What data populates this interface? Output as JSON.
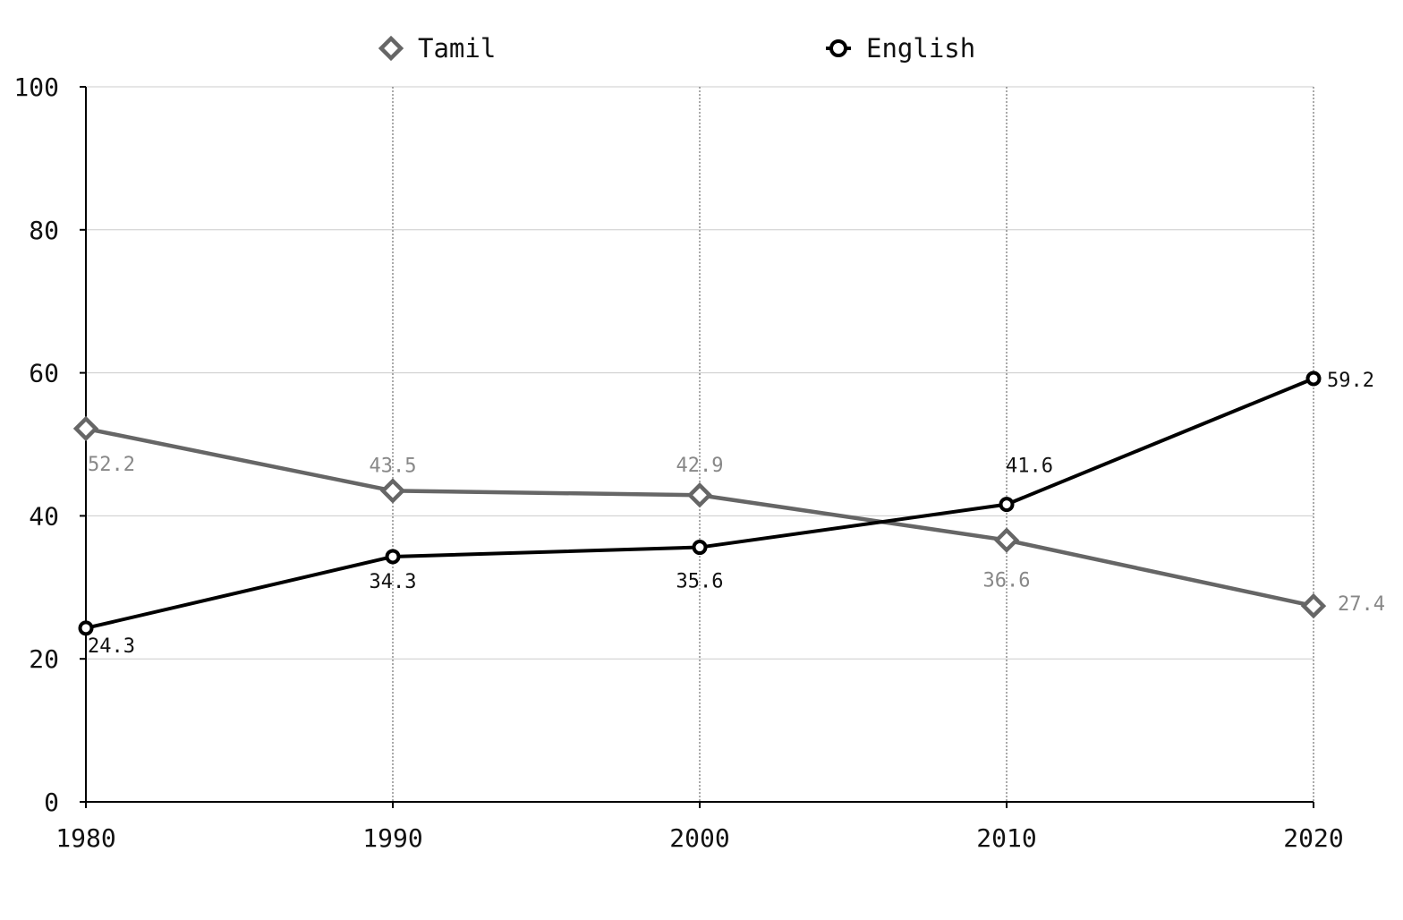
{
  "chart_data": {
    "type": "line",
    "title": "",
    "xlabel": "",
    "ylabel": "",
    "x": [
      1980,
      1990,
      2000,
      2010,
      2020
    ],
    "x_tick_labels": [
      "1980",
      "1990",
      "2000",
      "2010",
      "2020"
    ],
    "y_tick_labels": [
      "0",
      "20",
      "40",
      "60",
      "80",
      "100"
    ],
    "ylim": [
      0,
      100
    ],
    "grid": true,
    "legend_position": "top",
    "series": [
      {
        "name": "Tamil",
        "values": [
          52.2,
          43.5,
          42.9,
          36.6,
          27.4
        ],
        "value_labels": [
          "52.2",
          "43.5",
          "42.9",
          "36.6",
          "27.4"
        ],
        "color": "#666666",
        "marker": "diamond"
      },
      {
        "name": "English",
        "values": [
          24.3,
          34.3,
          35.6,
          41.6,
          59.2
        ],
        "value_labels": [
          "24.3",
          "34.3",
          "35.6",
          "41.6",
          "59.2"
        ],
        "color": "#000000",
        "marker": "circle"
      }
    ]
  }
}
